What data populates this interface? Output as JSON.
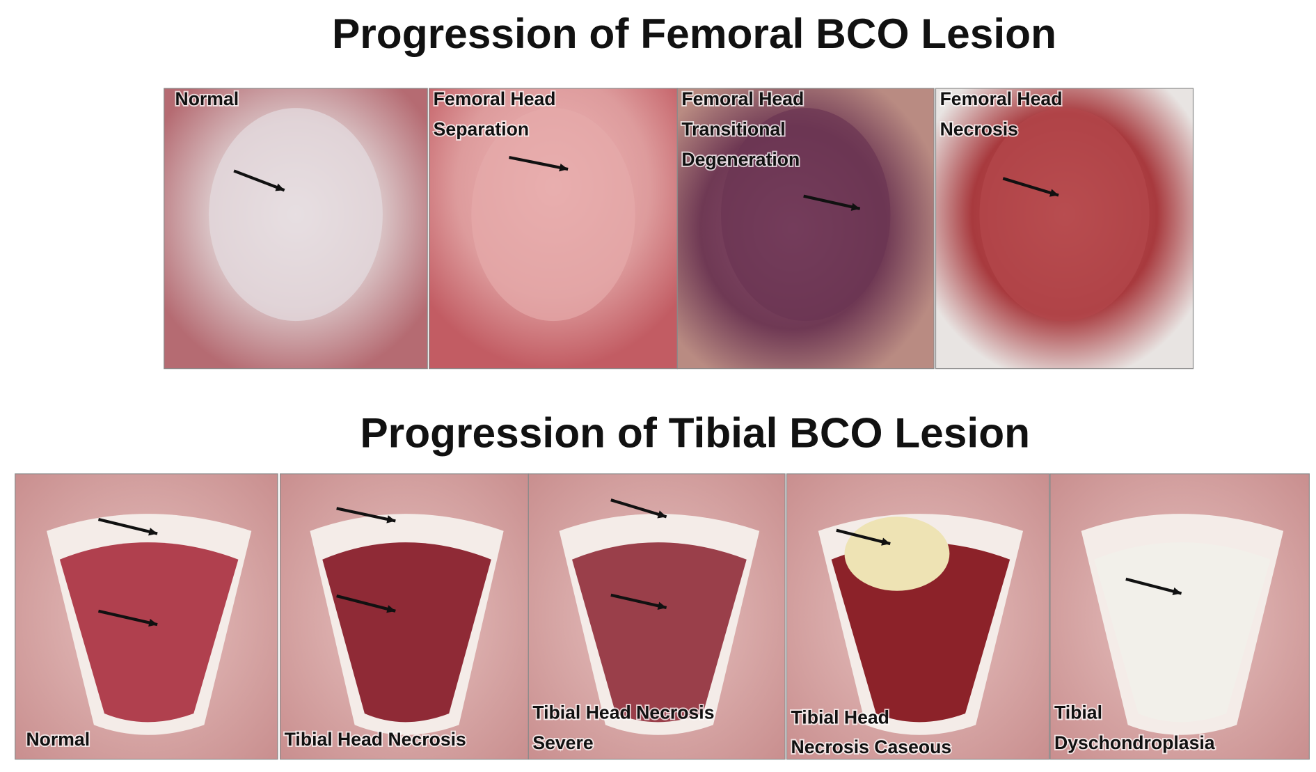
{
  "femoral": {
    "title": "Progression of Femoral BCO Lesion",
    "panels": [
      {
        "label": [
          "Normal"
        ]
      },
      {
        "label": [
          "Femoral Head",
          "Separation"
        ]
      },
      {
        "label": [
          "Femoral Head",
          "Transitional",
          "Degeneration"
        ]
      },
      {
        "label": [
          "Femoral Head",
          "Necrosis"
        ]
      }
    ]
  },
  "tibial": {
    "title": "Progression of Tibial BCO Lesion",
    "panels": [
      {
        "label": [
          "Normal"
        ]
      },
      {
        "label": [
          "Tibial Head Necrosis"
        ]
      },
      {
        "label": [
          "Tibial Head Necrosis",
          "Severe"
        ]
      },
      {
        "label": [
          "Tibial Head",
          "Necrosis Caseous"
        ]
      },
      {
        "label": [
          "Tibial",
          "Dyschondroplasia"
        ]
      }
    ]
  }
}
